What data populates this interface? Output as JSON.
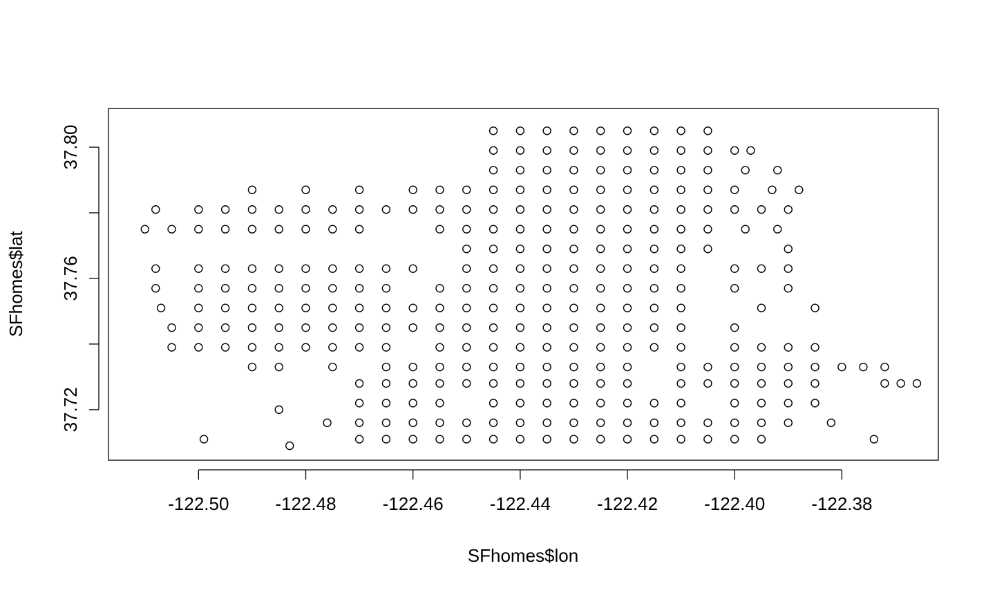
{
  "chart_data": {
    "type": "scatter",
    "x_label": "SFhomes$lon",
    "y_label": "SFhomes$lat",
    "color": "#000000",
    "xlim": [
      -122.5168,
      -122.362
    ],
    "ylim": [
      37.7046,
      37.8118
    ],
    "xticks": [
      {
        "value": -122.5,
        "label": "-122.50"
      },
      {
        "value": -122.48,
        "label": "-122.48"
      },
      {
        "value": -122.46,
        "label": "-122.46"
      },
      {
        "value": -122.44,
        "label": "-122.44"
      },
      {
        "value": -122.42,
        "label": "-122.42"
      },
      {
        "value": -122.4,
        "label": "-122.40"
      },
      {
        "value": -122.38,
        "label": "-122.38"
      }
    ],
    "yticks": [
      37.72,
      {
        "value": 37.74,
        "label": null
      },
      37.76,
      {
        "value": 37.78,
        "label": null
      },
      {
        "value": 37.8,
        "label": "37.80"
      }
    ],
    "x": [
      -122.445,
      -122.44,
      -122.435,
      -122.43,
      -122.425,
      -122.42,
      -122.415,
      -122.41,
      -122.405,
      -122.445,
      -122.44,
      -122.435,
      -122.43,
      -122.425,
      -122.42,
      -122.415,
      -122.41,
      -122.405,
      -122.4,
      -122.397,
      -122.445,
      -122.44,
      -122.435,
      -122.43,
      -122.425,
      -122.42,
      -122.415,
      -122.41,
      -122.405,
      -122.398,
      -122.392,
      -122.49,
      -122.48,
      -122.47,
      -122.46,
      -122.455,
      -122.45,
      -122.445,
      -122.44,
      -122.435,
      -122.43,
      -122.425,
      -122.42,
      -122.415,
      -122.41,
      -122.405,
      -122.4,
      -122.393,
      -122.388,
      -122.508,
      -122.5,
      -122.495,
      -122.49,
      -122.485,
      -122.48,
      -122.475,
      -122.47,
      -122.465,
      -122.46,
      -122.455,
      -122.45,
      -122.445,
      -122.44,
      -122.435,
      -122.43,
      -122.425,
      -122.42,
      -122.415,
      -122.41,
      -122.405,
      -122.4,
      -122.395,
      -122.39,
      -122.51,
      -122.505,
      -122.5,
      -122.495,
      -122.49,
      -122.485,
      -122.48,
      -122.475,
      -122.47,
      -122.455,
      -122.45,
      -122.445,
      -122.44,
      -122.435,
      -122.43,
      -122.425,
      -122.42,
      -122.415,
      -122.41,
      -122.405,
      -122.398,
      -122.392,
      -122.45,
      -122.445,
      -122.44,
      -122.435,
      -122.43,
      -122.425,
      -122.42,
      -122.415,
      -122.41,
      -122.405,
      -122.39,
      -122.508,
      -122.5,
      -122.495,
      -122.49,
      -122.485,
      -122.48,
      -122.475,
      -122.47,
      -122.465,
      -122.46,
      -122.45,
      -122.445,
      -122.44,
      -122.435,
      -122.43,
      -122.425,
      -122.42,
      -122.415,
      -122.41,
      -122.4,
      -122.395,
      -122.39,
      -122.508,
      -122.5,
      -122.495,
      -122.49,
      -122.485,
      -122.48,
      -122.475,
      -122.47,
      -122.465,
      -122.455,
      -122.45,
      -122.445,
      -122.44,
      -122.435,
      -122.43,
      -122.425,
      -122.42,
      -122.415,
      -122.41,
      -122.4,
      -122.39,
      -122.507,
      -122.5,
      -122.495,
      -122.49,
      -122.485,
      -122.48,
      -122.475,
      -122.47,
      -122.465,
      -122.46,
      -122.455,
      -122.45,
      -122.445,
      -122.44,
      -122.435,
      -122.43,
      -122.425,
      -122.42,
      -122.415,
      -122.41,
      -122.395,
      -122.385,
      -122.505,
      -122.5,
      -122.495,
      -122.49,
      -122.485,
      -122.48,
      -122.475,
      -122.47,
      -122.465,
      -122.46,
      -122.455,
      -122.45,
      -122.445,
      -122.44,
      -122.435,
      -122.43,
      -122.425,
      -122.42,
      -122.415,
      -122.41,
      -122.4,
      -122.505,
      -122.5,
      -122.495,
      -122.49,
      -122.485,
      -122.48,
      -122.475,
      -122.47,
      -122.465,
      -122.455,
      -122.45,
      -122.445,
      -122.44,
      -122.435,
      -122.43,
      -122.425,
      -122.42,
      -122.415,
      -122.41,
      -122.4,
      -122.395,
      -122.39,
      -122.385,
      -122.49,
      -122.485,
      -122.475,
      -122.465,
      -122.46,
      -122.455,
      -122.45,
      -122.445,
      -122.44,
      -122.435,
      -122.43,
      -122.425,
      -122.42,
      -122.41,
      -122.405,
      -122.4,
      -122.395,
      -122.39,
      -122.385,
      -122.38,
      -122.376,
      -122.372,
      -122.47,
      -122.465,
      -122.46,
      -122.455,
      -122.45,
      -122.445,
      -122.44,
      -122.435,
      -122.43,
      -122.425,
      -122.42,
      -122.41,
      -122.405,
      -122.4,
      -122.395,
      -122.39,
      -122.385,
      -122.372,
      -122.369,
      -122.366,
      -122.47,
      -122.465,
      -122.46,
      -122.455,
      -122.445,
      -122.44,
      -122.435,
      -122.43,
      -122.425,
      -122.42,
      -122.415,
      -122.41,
      -122.4,
      -122.395,
      -122.39,
      -122.385,
      -122.476,
      -122.47,
      -122.465,
      -122.46,
      -122.455,
      -122.45,
      -122.445,
      -122.44,
      -122.435,
      -122.43,
      -122.425,
      -122.42,
      -122.415,
      -122.41,
      -122.405,
      -122.4,
      -122.395,
      -122.39,
      -122.382,
      -122.499,
      -122.483,
      -122.47,
      -122.465,
      -122.46,
      -122.455,
      -122.45,
      -122.445,
      -122.44,
      -122.435,
      -122.43,
      -122.425,
      -122.42,
      -122.415,
      -122.41,
      -122.405,
      -122.4,
      -122.395,
      -122.374,
      -122.485
    ],
    "values": [
      37.805,
      37.805,
      37.805,
      37.805,
      37.805,
      37.805,
      37.805,
      37.805,
      37.805,
      37.799,
      37.799,
      37.799,
      37.799,
      37.799,
      37.799,
      37.799,
      37.799,
      37.799,
      37.799,
      37.799,
      37.793,
      37.793,
      37.793,
      37.793,
      37.793,
      37.793,
      37.793,
      37.793,
      37.793,
      37.793,
      37.793,
      37.787,
      37.787,
      37.787,
      37.787,
      37.787,
      37.787,
      37.787,
      37.787,
      37.787,
      37.787,
      37.787,
      37.787,
      37.787,
      37.787,
      37.787,
      37.787,
      37.787,
      37.787,
      37.781,
      37.781,
      37.781,
      37.781,
      37.781,
      37.781,
      37.781,
      37.781,
      37.781,
      37.781,
      37.781,
      37.781,
      37.781,
      37.781,
      37.781,
      37.781,
      37.781,
      37.781,
      37.781,
      37.781,
      37.781,
      37.781,
      37.781,
      37.781,
      37.775,
      37.775,
      37.775,
      37.775,
      37.775,
      37.775,
      37.775,
      37.775,
      37.775,
      37.775,
      37.775,
      37.775,
      37.775,
      37.775,
      37.775,
      37.775,
      37.775,
      37.775,
      37.775,
      37.775,
      37.775,
      37.775,
      37.769,
      37.769,
      37.769,
      37.769,
      37.769,
      37.769,
      37.769,
      37.769,
      37.769,
      37.769,
      37.769,
      37.763,
      37.763,
      37.763,
      37.763,
      37.763,
      37.763,
      37.763,
      37.763,
      37.763,
      37.763,
      37.763,
      37.763,
      37.763,
      37.763,
      37.763,
      37.763,
      37.763,
      37.763,
      37.763,
      37.763,
      37.763,
      37.763,
      37.757,
      37.757,
      37.757,
      37.757,
      37.757,
      37.757,
      37.757,
      37.757,
      37.757,
      37.757,
      37.757,
      37.757,
      37.757,
      37.757,
      37.757,
      37.757,
      37.757,
      37.757,
      37.757,
      37.757,
      37.757,
      37.751,
      37.751,
      37.751,
      37.751,
      37.751,
      37.751,
      37.751,
      37.751,
      37.751,
      37.751,
      37.751,
      37.751,
      37.751,
      37.751,
      37.751,
      37.751,
      37.751,
      37.751,
      37.751,
      37.751,
      37.751,
      37.751,
      37.745,
      37.745,
      37.745,
      37.745,
      37.745,
      37.745,
      37.745,
      37.745,
      37.745,
      37.745,
      37.745,
      37.745,
      37.745,
      37.745,
      37.745,
      37.745,
      37.745,
      37.745,
      37.745,
      37.745,
      37.745,
      37.739,
      37.739,
      37.739,
      37.739,
      37.739,
      37.739,
      37.739,
      37.739,
      37.739,
      37.739,
      37.739,
      37.739,
      37.739,
      37.739,
      37.739,
      37.739,
      37.739,
      37.739,
      37.739,
      37.739,
      37.739,
      37.739,
      37.739,
      37.733,
      37.733,
      37.733,
      37.733,
      37.733,
      37.733,
      37.733,
      37.733,
      37.733,
      37.733,
      37.733,
      37.733,
      37.733,
      37.733,
      37.733,
      37.733,
      37.733,
      37.733,
      37.733,
      37.733,
      37.733,
      37.733,
      37.728,
      37.728,
      37.728,
      37.728,
      37.728,
      37.728,
      37.728,
      37.728,
      37.728,
      37.728,
      37.728,
      37.728,
      37.728,
      37.728,
      37.728,
      37.728,
      37.728,
      37.728,
      37.728,
      37.728,
      37.722,
      37.722,
      37.722,
      37.722,
      37.722,
      37.722,
      37.722,
      37.722,
      37.722,
      37.722,
      37.722,
      37.722,
      37.722,
      37.722,
      37.722,
      37.722,
      37.716,
      37.716,
      37.716,
      37.716,
      37.716,
      37.716,
      37.716,
      37.716,
      37.716,
      37.716,
      37.716,
      37.716,
      37.716,
      37.716,
      37.716,
      37.716,
      37.716,
      37.716,
      37.716,
      37.711,
      37.709,
      37.711,
      37.711,
      37.711,
      37.711,
      37.711,
      37.711,
      37.711,
      37.711,
      37.711,
      37.711,
      37.711,
      37.711,
      37.711,
      37.711,
      37.711,
      37.711,
      37.711,
      37.72
    ]
  }
}
